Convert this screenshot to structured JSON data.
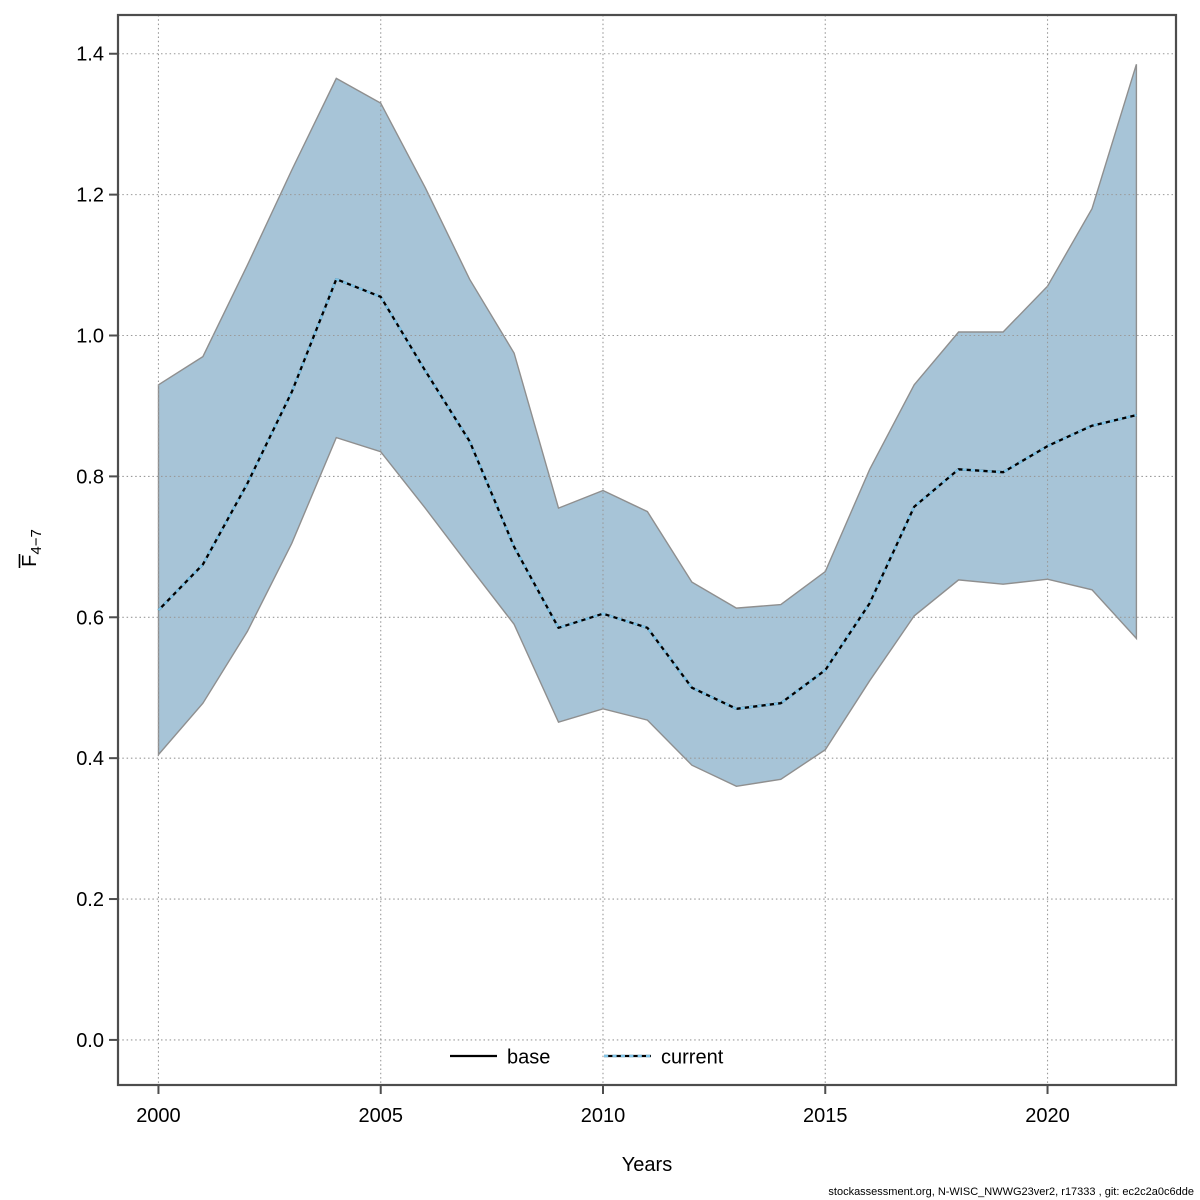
{
  "chart_data": {
    "type": "line",
    "subtype": "line-with-confidence-band",
    "title": "",
    "xlabel": "Years",
    "ylabel": "F̅4−7",
    "ylabel_letter": "F",
    "ylabel_subscript": "4−7",
    "x": [
      2000,
      2001,
      2002,
      2003,
      2004,
      2005,
      2006,
      2007,
      2008,
      2009,
      2010,
      2011,
      2012,
      2013,
      2014,
      2015,
      2016,
      2017,
      2018,
      2019,
      2020,
      2021,
      2022
    ],
    "series": [
      {
        "name": "base",
        "style": "solid",
        "color": "#000000",
        "values": [
          0.61,
          0.675,
          0.79,
          0.92,
          1.08,
          1.055,
          0.95,
          0.85,
          0.7,
          0.585,
          0.605,
          0.585,
          0.5,
          0.47,
          0.478,
          0.525,
          0.62,
          0.757,
          0.81,
          0.806,
          0.843,
          0.872,
          0.887
        ]
      },
      {
        "name": "current",
        "style": "dotted",
        "color": "#7FC4E8",
        "values": [
          0.61,
          0.675,
          0.79,
          0.92,
          1.08,
          1.055,
          0.95,
          0.85,
          0.7,
          0.585,
          0.605,
          0.585,
          0.5,
          0.47,
          0.478,
          0.525,
          0.62,
          0.757,
          0.81,
          0.806,
          0.843,
          0.872,
          0.887
        ]
      }
    ],
    "band": {
      "name": "confidence-band",
      "lower": [
        0.405,
        0.478,
        0.58,
        0.705,
        0.855,
        0.835,
        0.755,
        0.672,
        0.59,
        0.451,
        0.47,
        0.454,
        0.39,
        0.36,
        0.37,
        0.412,
        0.51,
        0.602,
        0.653,
        0.647,
        0.654,
        0.639,
        0.57
      ],
      "upper": [
        0.93,
        0.97,
        1.1,
        1.235,
        1.365,
        1.33,
        1.21,
        1.08,
        0.975,
        0.755,
        0.78,
        0.75,
        0.65,
        0.613,
        0.618,
        0.665,
        0.81,
        0.93,
        1.005,
        1.005,
        1.07,
        1.18,
        1.385
      ]
    },
    "xlim": [
      1999.09,
      2022.89
    ],
    "ylim": [
      -0.064,
      1.455
    ],
    "xticks": [
      2000,
      2005,
      2010,
      2015,
      2020
    ],
    "yticks": [
      0.0,
      0.2,
      0.4,
      0.6,
      0.8,
      1.0,
      1.2,
      1.4
    ],
    "grid": true,
    "legend_position": "bottom-center-inside"
  },
  "legend": {
    "items": [
      {
        "label": "base",
        "style": "solid"
      },
      {
        "label": "current",
        "style": "dotted"
      }
    ]
  },
  "footer": {
    "text": "stockassessment.org, N-WISC_NWWG23ver2, r17333 , git: ec2c2a0c6dde"
  },
  "colors": {
    "background": "#ffffff",
    "frame": "#4D4D4D",
    "grid": "#999999",
    "band_fill": "#A7C4D7",
    "band_edge": "#8F8F8F",
    "base_line": "#000000",
    "current_line": "#7FC4E8",
    "text": "#000000"
  }
}
